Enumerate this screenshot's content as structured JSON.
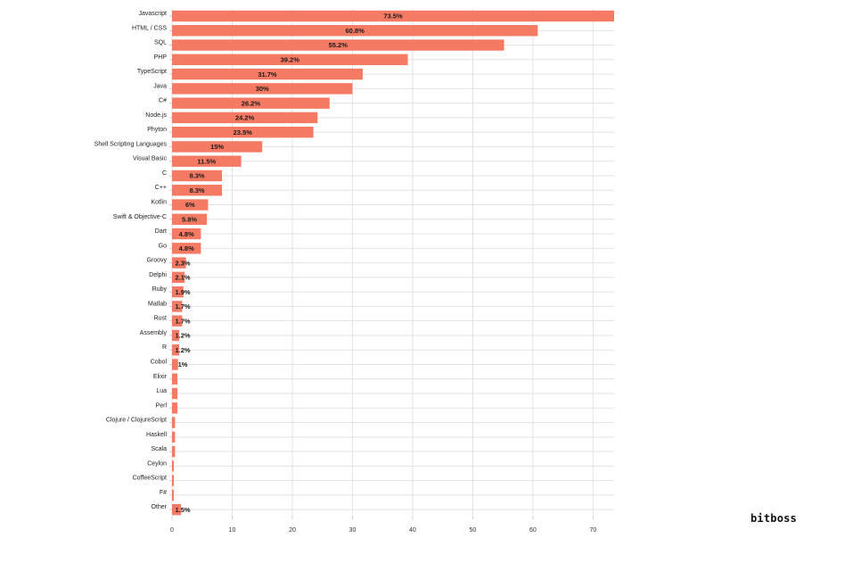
{
  "chart_data": {
    "type": "bar",
    "orientation": "horizontal",
    "categories": [
      "Javascript",
      "HTML / CSS",
      "SQL",
      "PHP",
      "TypeScript",
      "Java",
      "C#",
      "Node.js",
      "Phyton",
      "Shell Scripting Languages",
      "Visual Basic",
      "C",
      "C++",
      "Kotlin",
      "Swift & Objective-C",
      "Dart",
      "Go",
      "Groovy",
      "Delphi",
      "Ruby",
      "Matlab",
      "Rust",
      "Assembly",
      "R",
      "Cobol",
      "Elixir",
      "Lua",
      "Perl",
      "Clojure / ClojureScript",
      "Haskell",
      "Scala",
      "Ceylon",
      "CoffeeScript",
      "F#",
      "Other"
    ],
    "values": [
      73.5,
      60.8,
      55.2,
      39.2,
      31.7,
      30,
      26.2,
      24.2,
      23.5,
      15,
      11.5,
      8.3,
      8.3,
      6,
      5.8,
      4.8,
      4.8,
      2.3,
      2.1,
      1.9,
      1.7,
      1.7,
      1.2,
      1.2,
      1,
      0.9,
      0.9,
      0.9,
      0.5,
      0.5,
      0.5,
      0.3,
      0.3,
      0.3,
      1.5
    ],
    "data_labels": [
      "73.5%",
      "60.8%",
      "55.2%",
      "39.2%",
      "31.7%",
      "30%",
      "26.2%",
      "24.2%",
      "23.5%",
      "15%",
      "11.5%",
      "8.3%",
      "8.3%",
      "6%",
      "5.8%",
      "4.8%",
      "4.8%",
      "2.3%",
      "2.1%",
      "1.9%",
      "1.7%",
      "1.7%",
      "1.2%",
      "1.2%",
      "1%",
      "",
      "",
      "",
      "",
      "",
      "",
      "",
      "",
      "",
      "1.5%"
    ],
    "xlim": [
      0,
      73.5
    ],
    "xticks": [
      0,
      10,
      20,
      30,
      40,
      50,
      60,
      70
    ],
    "grid": true,
    "bar_color": "#f47a63",
    "title": "",
    "xlabel": "",
    "ylabel": ""
  },
  "branding": {
    "text": "bitboss"
  }
}
